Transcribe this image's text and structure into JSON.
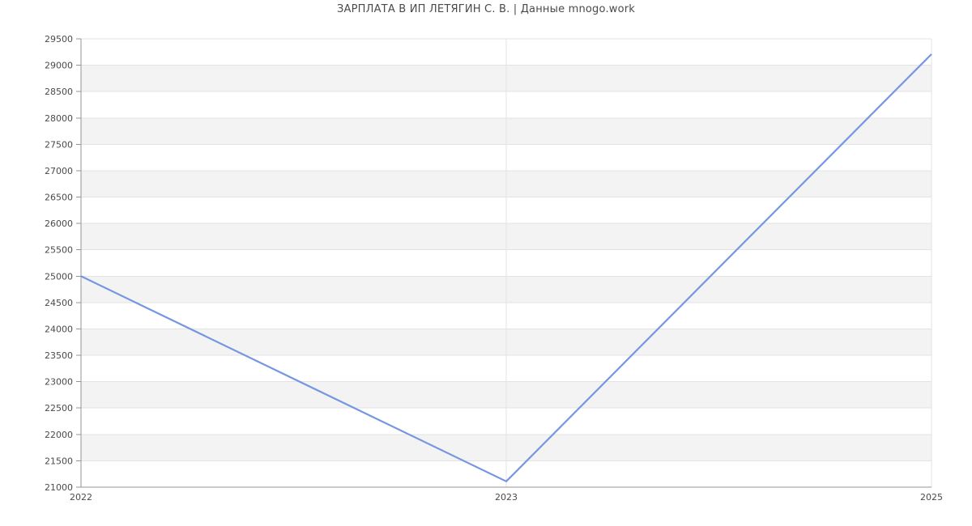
{
  "chart_data": {
    "type": "line",
    "title": "ЗАРПЛАТА В ИП ЛЕТЯГИН С. В. | Данные mnogo.work",
    "categories": [
      "2022",
      "2023",
      "2025"
    ],
    "values": [
      25000,
      21110,
      29210
    ],
    "xlabel": "",
    "ylabel": "",
    "ylim": [
      21000,
      29500
    ],
    "ytick_step": 500,
    "ytick_labels": [
      "21000",
      "21500",
      "22000",
      "22500",
      "23000",
      "23500",
      "24000",
      "24500",
      "25000",
      "25500",
      "26000",
      "26500",
      "27000",
      "27500",
      "28000",
      "28500",
      "29000",
      "29500"
    ],
    "grid": true,
    "plot_bands": "alternating horizontal bands, white and light gray, one band per 500-unit interval, bottom interval white",
    "legend_position": "none"
  },
  "style": {
    "line_color": "#7596e0",
    "band_fill": "#f3f3f3",
    "gridline_color": "#e3e3e3",
    "axis_color": "#949494",
    "label_color": "#4a4a4a",
    "title_color": "#4a4a4a",
    "background": "#ffffff"
  }
}
